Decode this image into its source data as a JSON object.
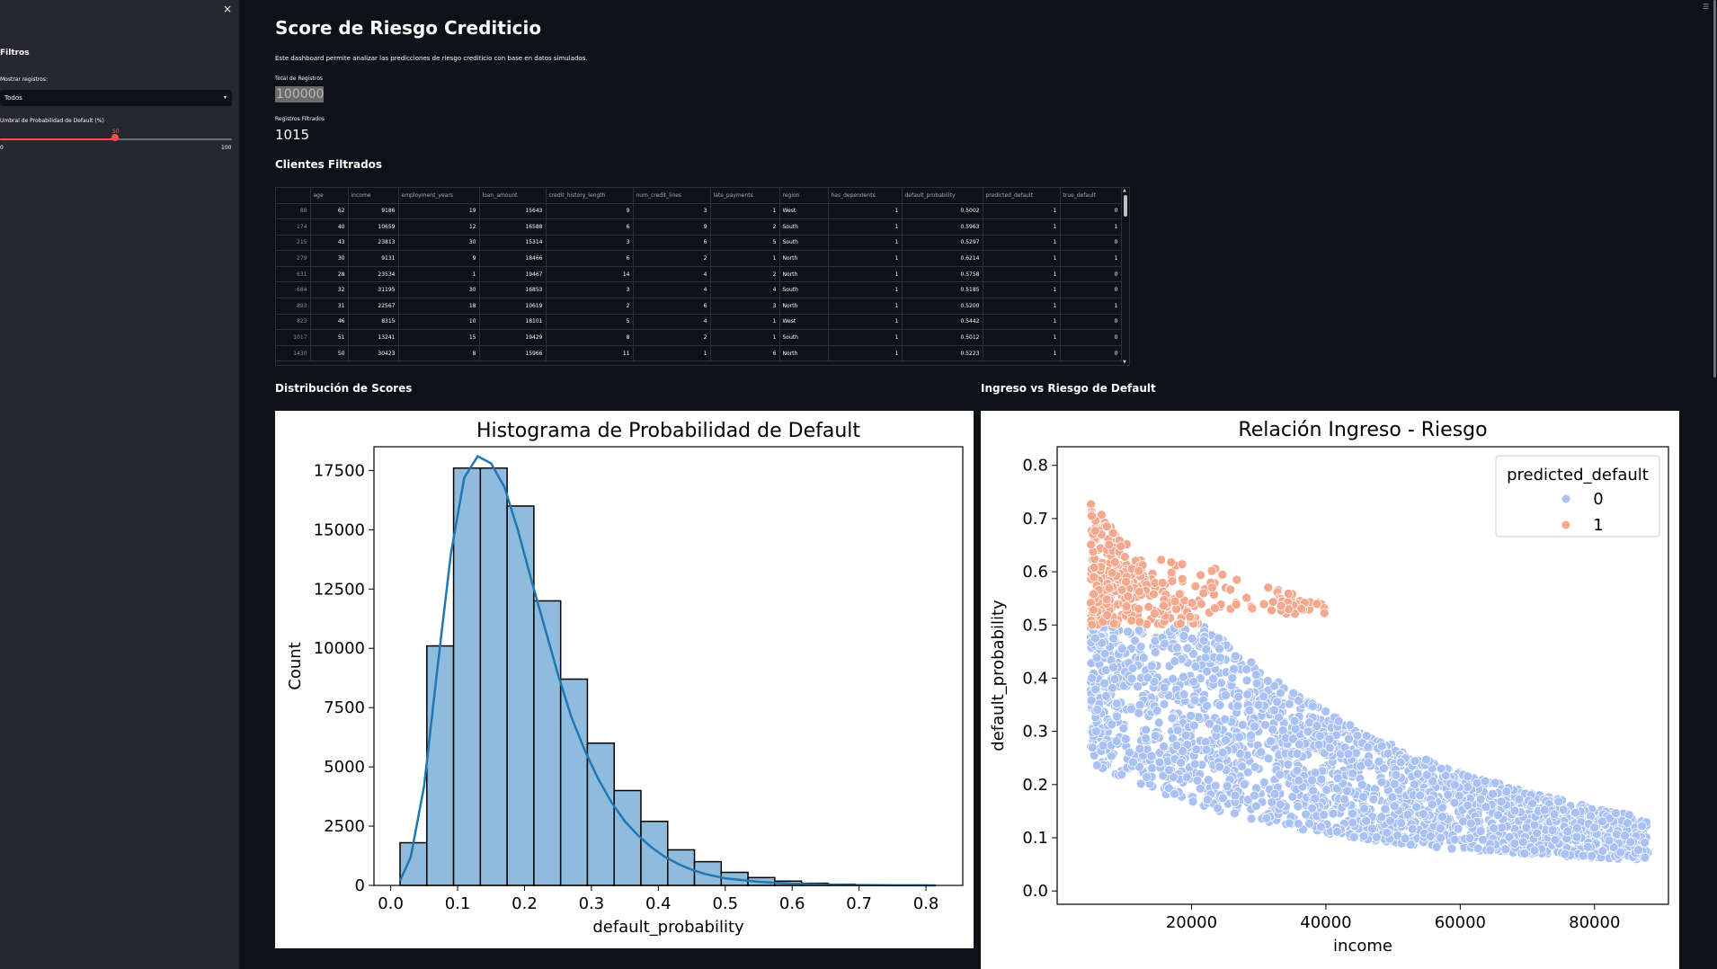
{
  "sidebar": {
    "close_label": "×",
    "title": "Filtros",
    "show_records_label": "Mostrar registros:",
    "show_records_value": "Todos",
    "threshold_label": "Umbral de Probabilidad de Default (%)",
    "threshold_value": "50",
    "threshold_fraction": 0.5,
    "threshold_min": "0",
    "threshold_max": "100"
  },
  "header": {
    "title": "Score de Riesgo Crediticio",
    "description": "Este dashboard permite analizar las predicciones de riesgo crediticio con base en datos simulados."
  },
  "metrics": {
    "total_label": "Total de Registros",
    "total_value": "100000",
    "filtered_label": "Registros Filtrados",
    "filtered_value": "1015"
  },
  "table": {
    "title": "Clientes Filtrados",
    "columns": [
      "",
      "age",
      "income",
      "employment_years",
      "loan_amount",
      "credit_history_length",
      "num_credit_lines",
      "late_payments",
      "region",
      "has_dependents",
      "default_probability",
      "predicted_default",
      "true_default"
    ],
    "rows": [
      [
        "88",
        "62",
        "9186",
        "19",
        "15643",
        "9",
        "3",
        "1",
        "West",
        "1",
        "0.5002",
        "1",
        "0"
      ],
      [
        "174",
        "40",
        "10659",
        "12",
        "16588",
        "6",
        "9",
        "2",
        "South",
        "1",
        "0.5963",
        "1",
        "1"
      ],
      [
        "215",
        "43",
        "23813",
        "30",
        "15314",
        "3",
        "6",
        "5",
        "South",
        "1",
        "0.5297",
        "1",
        "0"
      ],
      [
        "279",
        "30",
        "9131",
        "9",
        "18466",
        "6",
        "2",
        "1",
        "North",
        "1",
        "0.6214",
        "1",
        "1"
      ],
      [
        "631",
        "28",
        "23534",
        "1",
        "19467",
        "14",
        "4",
        "2",
        "North",
        "1",
        "0.5758",
        "1",
        "0"
      ],
      [
        "684",
        "32",
        "31195",
        "30",
        "16853",
        "3",
        "4",
        "4",
        "South",
        "1",
        "0.5185",
        "1",
        "0"
      ],
      [
        "893",
        "31",
        "22567",
        "18",
        "10619",
        "2",
        "6",
        "3",
        "North",
        "1",
        "0.5200",
        "1",
        "1"
      ],
      [
        "823",
        "46",
        "8315",
        "10",
        "18101",
        "5",
        "4",
        "1",
        "West",
        "1",
        "0.5442",
        "1",
        "0"
      ],
      [
        "1017",
        "51",
        "13241",
        "15",
        "19429",
        "8",
        "2",
        "1",
        "South",
        "1",
        "0.5012",
        "1",
        "0"
      ],
      [
        "1430",
        "50",
        "30423",
        "8",
        "15966",
        "11",
        "1",
        "6",
        "North",
        "1",
        "0.5223",
        "1",
        "0"
      ]
    ]
  },
  "section_hist": "Distribución de Scores",
  "section_scatter": "Ingreso vs Riesgo de Default",
  "chart_data": [
    {
      "type": "bar",
      "title": "Histograma de Probabilidad de Default",
      "xlabel": "default_probability",
      "ylabel": "Count",
      "bin_edges": [
        0.014,
        0.054,
        0.094,
        0.134,
        0.174,
        0.214,
        0.254,
        0.294,
        0.334,
        0.374,
        0.414,
        0.454,
        0.494,
        0.534,
        0.574,
        0.614,
        0.654,
        0.694,
        0.734,
        0.774,
        0.814
      ],
      "values": [
        1800,
        10100,
        17600,
        17600,
        16000,
        12000,
        8700,
        6000,
        4000,
        2700,
        1500,
        1000,
        550,
        330,
        180,
        90,
        50,
        20,
        10,
        5
      ],
      "kde": [
        [
          0.014,
          200
        ],
        [
          0.03,
          1200
        ],
        [
          0.05,
          4200
        ],
        [
          0.07,
          9200
        ],
        [
          0.09,
          14000
        ],
        [
          0.11,
          17200
        ],
        [
          0.13,
          18100
        ],
        [
          0.15,
          17800
        ],
        [
          0.17,
          16800
        ],
        [
          0.19,
          15000
        ],
        [
          0.21,
          12900
        ],
        [
          0.23,
          10900
        ],
        [
          0.25,
          8900
        ],
        [
          0.27,
          7100
        ],
        [
          0.29,
          5700
        ],
        [
          0.31,
          4500
        ],
        [
          0.33,
          3500
        ],
        [
          0.35,
          2700
        ],
        [
          0.37,
          2100
        ],
        [
          0.39,
          1600
        ],
        [
          0.41,
          1200
        ],
        [
          0.43,
          900
        ],
        [
          0.45,
          660
        ],
        [
          0.47,
          480
        ],
        [
          0.5,
          300
        ],
        [
          0.55,
          150
        ],
        [
          0.6,
          70
        ],
        [
          0.65,
          30
        ],
        [
          0.7,
          12
        ],
        [
          0.75,
          5
        ],
        [
          0.814,
          0
        ]
      ],
      "xlim": [
        -0.025,
        0.855
      ],
      "ylim": [
        0,
        18500
      ],
      "xticks": [
        "0.0",
        "0.1",
        "0.2",
        "0.3",
        "0.4",
        "0.5",
        "0.6",
        "0.7",
        "0.8"
      ],
      "yticks": [
        "0",
        "2500",
        "5000",
        "7500",
        "10000",
        "12500",
        "15000",
        "17500"
      ],
      "bar_color": "#8fbbdc",
      "line_color": "#1f77b4"
    },
    {
      "type": "scatter",
      "title": "Relación Ingreso - Riesgo",
      "xlabel": "income",
      "ylabel": "default_probability",
      "xlim": [
        0,
        91000
      ],
      "ylim": [
        -0.025,
        0.835
      ],
      "xticks": [
        "20000",
        "40000",
        "60000",
        "80000"
      ],
      "yticks": [
        "0.0",
        "0.1",
        "0.2",
        "0.3",
        "0.4",
        "0.5",
        "0.6",
        "0.7",
        "0.8"
      ],
      "legend_title": "predicted_default",
      "legend_position": "top-right",
      "series": [
        {
          "name": "0",
          "color": "#a9c1f3"
        },
        {
          "name": "1",
          "color": "#f4a98f"
        }
      ],
      "threshold": 0.5,
      "income_range": [
        5000,
        88000
      ]
    }
  ]
}
